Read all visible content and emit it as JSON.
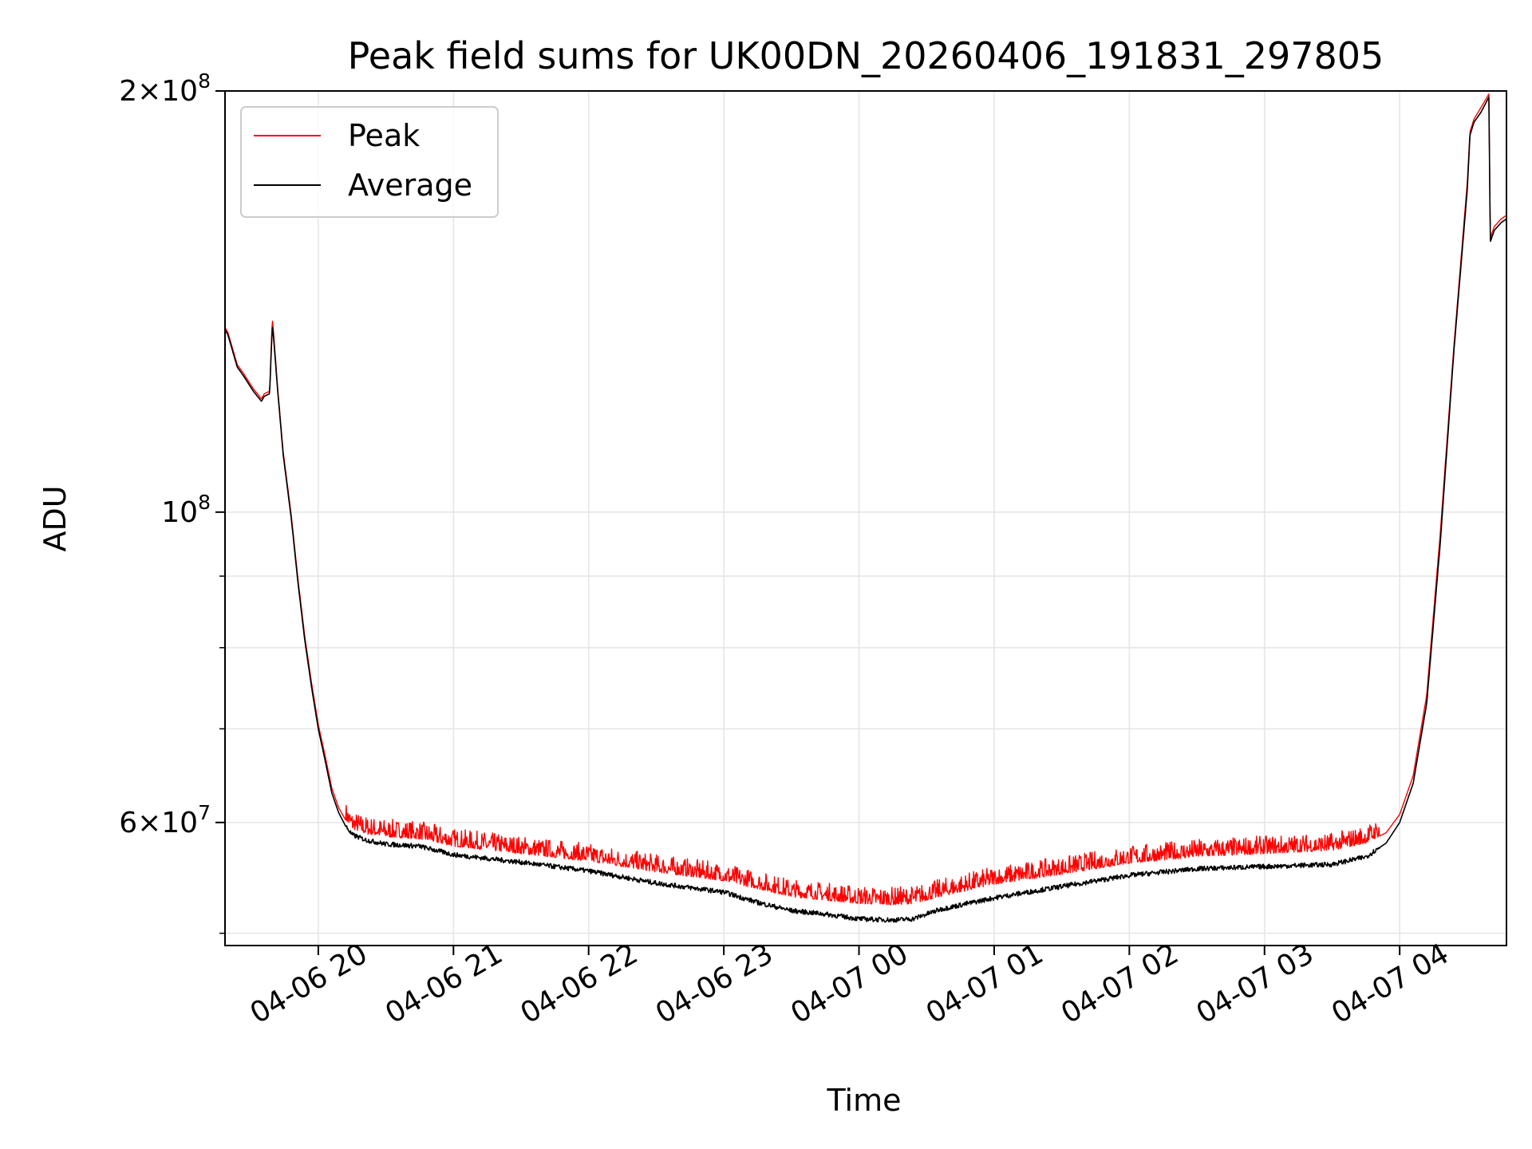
{
  "chart_data": {
    "type": "line",
    "title": "Peak field sums for UK00DN_20260406_191831_297805",
    "xlabel": "Time",
    "ylabel": "ADU",
    "yscale": "log",
    "ylim": [
      49000000,
      200000000
    ],
    "xlim_hours": [
      19.31,
      28.79
    ],
    "x_ticks": [
      {
        "hours": 20,
        "label": "04-06 20"
      },
      {
        "hours": 21,
        "label": "04-06 21"
      },
      {
        "hours": 22,
        "label": "04-06 22"
      },
      {
        "hours": 23,
        "label": "04-06 23"
      },
      {
        "hours": 24,
        "label": "04-07 00"
      },
      {
        "hours": 25,
        "label": "04-07 01"
      },
      {
        "hours": 26,
        "label": "04-07 02"
      },
      {
        "hours": 27,
        "label": "04-07 03"
      },
      {
        "hours": 28,
        "label": "04-07 04"
      }
    ],
    "y_major_ticks": [
      {
        "value": 60000000,
        "mantissa": "6",
        "exponent": "7"
      },
      {
        "value": 100000000,
        "mantissa": "",
        "exponent": "8"
      },
      {
        "value": 200000000,
        "mantissa": "2",
        "exponent": "8"
      }
    ],
    "y_minor_ticks": [
      50000000,
      70000000,
      80000000,
      90000000
    ],
    "times_symbol": "×",
    "base": "10",
    "grid": true,
    "legend_position": "upper-left",
    "legend": [
      {
        "name": "Peak",
        "color": "#ff0000"
      },
      {
        "name": "Average",
        "color": "#000000"
      }
    ],
    "series": [
      {
        "name": "Average",
        "color": "#000000",
        "x_hours": [
          19.31,
          19.33,
          19.36,
          19.4,
          19.45,
          19.52,
          19.58,
          19.6,
          19.64,
          19.66,
          19.67,
          19.7,
          19.74,
          19.8,
          19.85,
          19.9,
          19.95,
          20.0,
          20.05,
          20.1,
          20.15,
          20.2,
          20.25,
          20.35,
          20.5,
          20.75,
          21.0,
          21.5,
          22.0,
          22.5,
          23.0,
          23.25,
          23.5,
          23.75,
          24.0,
          24.25,
          24.4,
          24.6,
          25.0,
          25.5,
          26.0,
          26.5,
          27.0,
          27.5,
          27.75,
          27.9,
          28.0,
          28.1,
          28.2,
          28.3,
          28.4,
          28.5,
          28.52,
          28.55,
          28.6,
          28.66,
          28.67,
          28.7,
          28.75,
          28.79
        ],
        "values": [
          135000000,
          134000000,
          131000000,
          127000000,
          125000000,
          122000000,
          120000000,
          121000000,
          121500000,
          136000000,
          133000000,
          122000000,
          110000000,
          99000000,
          89000000,
          81000000,
          75000000,
          70000000,
          66500000,
          63000000,
          61000000,
          59700000,
          58800000,
          58300000,
          57900000,
          57700000,
          56900000,
          56200000,
          55400000,
          54300000,
          53500000,
          52600000,
          51900000,
          51600000,
          51200000,
          51100000,
          51200000,
          52000000,
          53000000,
          54000000,
          55000000,
          55600000,
          55800000,
          56000000,
          56700000,
          58000000,
          60000000,
          64000000,
          73000000,
          95000000,
          130000000,
          170000000,
          186000000,
          190000000,
          193000000,
          198000000,
          156000000,
          159000000,
          161000000,
          162000000
        ]
      },
      {
        "name": "Peak",
        "color": "#ff0000",
        "x_hours": [
          19.31,
          19.33,
          19.36,
          19.4,
          19.45,
          19.52,
          19.58,
          19.6,
          19.64,
          19.66,
          19.67,
          19.7,
          19.74,
          19.8,
          19.85,
          19.9,
          19.95,
          20.0,
          20.05,
          20.1,
          20.15,
          20.2,
          20.25,
          20.35,
          20.5,
          20.75,
          21.0,
          21.5,
          22.0,
          22.5,
          23.0,
          23.25,
          23.5,
          23.75,
          24.0,
          24.25,
          24.4,
          24.6,
          25.0,
          25.5,
          26.0,
          26.5,
          27.0,
          27.5,
          27.75,
          27.9,
          28.0,
          28.1,
          28.2,
          28.3,
          28.4,
          28.5,
          28.52,
          28.55,
          28.6,
          28.66,
          28.67,
          28.7,
          28.75,
          28.79
        ],
        "values": [
          135500000,
          134500000,
          131500000,
          127500000,
          125500000,
          122500000,
          120500000,
          121500000,
          122000000,
          137500000,
          134000000,
          122500000,
          110500000,
          99500000,
          89500000,
          81500000,
          75500000,
          70500000,
          67000000,
          63500000,
          61500000,
          60300000,
          59400000,
          58900000,
          58600000,
          58400000,
          57700000,
          57000000,
          56300000,
          55300000,
          54500000,
          53800000,
          53100000,
          52800000,
          52500000,
          52400000,
          52500000,
          53100000,
          54200000,
          55100000,
          56100000,
          56700000,
          57000000,
          57300000,
          58000000,
          59000000,
          60800000,
          64800000,
          74000000,
          96500000,
          131000000,
          172000000,
          187000000,
          191000000,
          194500000,
          199000000,
          157000000,
          160000000,
          162000000,
          163000000
        ]
      }
    ]
  }
}
